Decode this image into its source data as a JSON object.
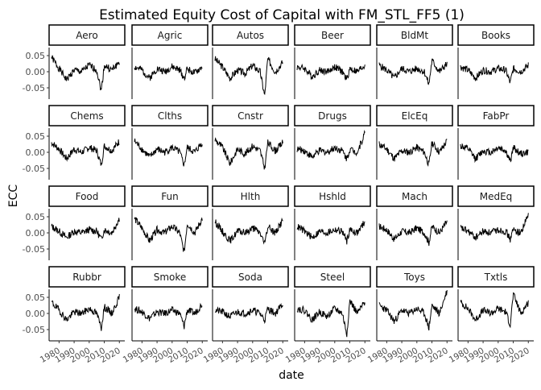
{
  "chart_data": {
    "type": "line",
    "title": "Estimated Equity Cost of Capital with FM_STL_FF5 (1)",
    "xlabel": "date",
    "ylabel": "ECC",
    "ylim": [
      -0.085,
      0.075
    ],
    "xlim": [
      1975,
      2022
    ],
    "yticks": [
      0.05,
      0.0,
      -0.05
    ],
    "ytick_labels": [
      "0.05",
      "0.00",
      "-0.05"
    ],
    "xticks": [
      1980,
      1990,
      2000,
      2010,
      2020
    ],
    "xtick_labels": [
      "1980",
      "1990",
      "2000",
      "2010",
      "2020"
    ],
    "facet_layout": {
      "rows": 4,
      "cols": 6
    },
    "panels": [
      {
        "label": "Aero",
        "series": [
          {
            "x": [
              1975,
              1980,
              1985,
              1990,
              1995,
              2000,
              2005,
              2008,
              2010,
              2015,
              2020
            ],
            "y": [
              0.045,
              0.01,
              -0.025,
              0.005,
              0.0,
              0.02,
              0.005,
              -0.06,
              0.02,
              0.005,
              0.03
            ]
          }
        ]
      },
      {
        "label": "Agric",
        "series": [
          {
            "x": [
              1975,
              1980,
              1985,
              1990,
              1995,
              2000,
              2005,
              2008,
              2010,
              2015,
              2020
            ],
            "y": [
              0.015,
              0.005,
              -0.02,
              0.01,
              0.0,
              0.015,
              0.005,
              -0.02,
              0.01,
              -0.005,
              0.015
            ]
          }
        ]
      },
      {
        "label": "Autos",
        "series": [
          {
            "x": [
              1975,
              1980,
              1985,
              1990,
              1995,
              2000,
              2005,
              2008,
              2010,
              2015,
              2020
            ],
            "y": [
              0.04,
              0.015,
              -0.02,
              0.005,
              -0.005,
              0.02,
              0.0,
              -0.075,
              0.04,
              0.0,
              0.03
            ]
          }
        ]
      },
      {
        "label": "Beer",
        "series": [
          {
            "x": [
              1975,
              1980,
              1985,
              1990,
              1995,
              2000,
              2005,
              2008,
              2010,
              2015,
              2020
            ],
            "y": [
              0.015,
              0.01,
              -0.015,
              0.005,
              0.0,
              0.015,
              0.0,
              -0.025,
              0.01,
              0.0,
              0.02
            ]
          }
        ]
      },
      {
        "label": "BldMt",
        "series": [
          {
            "x": [
              1975,
              1980,
              1985,
              1990,
              1995,
              2000,
              2005,
              2008,
              2010,
              2015,
              2020
            ],
            "y": [
              0.02,
              0.005,
              -0.02,
              0.01,
              0.0,
              0.01,
              0.0,
              -0.04,
              0.035,
              0.0,
              0.025
            ]
          }
        ]
      },
      {
        "label": "Books",
        "series": [
          {
            "x": [
              1975,
              1980,
              1985,
              1990,
              1995,
              2000,
              2005,
              2008,
              2010,
              2015,
              2020
            ],
            "y": [
              0.015,
              0.005,
              -0.02,
              0.005,
              0.0,
              0.01,
              0.005,
              -0.035,
              0.01,
              0.0,
              0.02
            ]
          }
        ]
      },
      {
        "label": "Chems",
        "series": [
          {
            "x": [
              1975,
              1980,
              1985,
              1990,
              1995,
              2000,
              2005,
              2008,
              2010,
              2015,
              2020
            ],
            "y": [
              0.03,
              0.01,
              -0.02,
              0.01,
              0.0,
              0.015,
              0.005,
              -0.04,
              0.02,
              0.005,
              0.035
            ]
          }
        ]
      },
      {
        "label": "Clths",
        "series": [
          {
            "x": [
              1975,
              1980,
              1985,
              1990,
              1995,
              2000,
              2005,
              2008,
              2010,
              2015,
              2020
            ],
            "y": [
              0.035,
              0.01,
              -0.015,
              0.01,
              0.0,
              0.015,
              0.0,
              -0.04,
              0.015,
              0.0,
              0.03
            ]
          }
        ]
      },
      {
        "label": "Cnstr",
        "series": [
          {
            "x": [
              1975,
              1980,
              1985,
              1990,
              1995,
              2000,
              2005,
              2008,
              2010,
              2015,
              2020
            ],
            "y": [
              0.04,
              0.015,
              -0.035,
              0.01,
              -0.005,
              0.02,
              0.005,
              -0.05,
              0.03,
              0.005,
              0.03
            ]
          }
        ]
      },
      {
        "label": "Drugs",
        "series": [
          {
            "x": [
              1975,
              1980,
              1985,
              1990,
              1995,
              2000,
              2005,
              2008,
              2010,
              2015,
              2020
            ],
            "y": [
              0.01,
              0.005,
              -0.015,
              0.005,
              0.0,
              0.015,
              0.005,
              -0.02,
              0.01,
              0.0,
              0.06
            ]
          }
        ]
      },
      {
        "label": "ElcEq",
        "series": [
          {
            "x": [
              1975,
              1980,
              1985,
              1990,
              1995,
              2000,
              2005,
              2008,
              2010,
              2015,
              2020
            ],
            "y": [
              0.025,
              0.01,
              -0.02,
              0.005,
              0.0,
              0.015,
              0.0,
              -0.04,
              0.03,
              0.0,
              0.035
            ]
          }
        ]
      },
      {
        "label": "FabPr",
        "series": [
          {
            "x": [
              1975,
              1980,
              1985,
              1990,
              1995,
              2000,
              2005,
              2008,
              2010,
              2015,
              2020
            ],
            "y": [
              0.02,
              0.01,
              -0.02,
              0.005,
              0.0,
              0.015,
              0.005,
              -0.03,
              0.015,
              -0.005,
              0.0
            ]
          }
        ]
      },
      {
        "label": "Food",
        "series": [
          {
            "x": [
              1975,
              1980,
              1985,
              1990,
              1995,
              2000,
              2005,
              2008,
              2010,
              2015,
              2020
            ],
            "y": [
              0.02,
              0.005,
              -0.015,
              0.005,
              0.0,
              0.01,
              0.005,
              -0.02,
              0.01,
              0.0,
              0.045
            ]
          }
        ]
      },
      {
        "label": "Fun",
        "series": [
          {
            "x": [
              1975,
              1980,
              1985,
              1990,
              1995,
              2000,
              2005,
              2008,
              2010,
              2015,
              2020
            ],
            "y": [
              0.045,
              0.015,
              -0.025,
              0.01,
              0.0,
              0.02,
              0.0,
              -0.06,
              0.03,
              0.0,
              0.045
            ]
          }
        ]
      },
      {
        "label": "Hlth",
        "series": [
          {
            "x": [
              1975,
              1980,
              1985,
              1990,
              1995,
              2000,
              2005,
              2008,
              2010,
              2015,
              2020
            ],
            "y": [
              0.035,
              0.005,
              -0.025,
              0.005,
              0.0,
              0.015,
              0.0,
              -0.035,
              0.02,
              0.0,
              0.04
            ]
          }
        ]
      },
      {
        "label": "Hshld",
        "series": [
          {
            "x": [
              1975,
              1980,
              1985,
              1990,
              1995,
              2000,
              2005,
              2008,
              2010,
              2015,
              2020
            ],
            "y": [
              0.02,
              0.005,
              -0.015,
              0.005,
              0.0,
              0.01,
              0.005,
              -0.025,
              0.01,
              0.0,
              0.035
            ]
          }
        ]
      },
      {
        "label": "Mach",
        "series": [
          {
            "x": [
              1975,
              1980,
              1985,
              1990,
              1995,
              2000,
              2005,
              2008,
              2010,
              2015,
              2020
            ],
            "y": [
              0.02,
              0.01,
              -0.02,
              0.005,
              0.0,
              0.015,
              0.0,
              -0.03,
              0.02,
              0.0,
              0.035
            ]
          }
        ]
      },
      {
        "label": "MedEq",
        "series": [
          {
            "x": [
              1975,
              1980,
              1985,
              1990,
              1995,
              2000,
              2005,
              2008,
              2010,
              2015,
              2020
            ],
            "y": [
              0.015,
              0.005,
              -0.015,
              0.005,
              0.0,
              0.01,
              0.005,
              -0.02,
              0.01,
              0.0,
              0.055
            ]
          }
        ]
      },
      {
        "label": "Rubbr",
        "series": [
          {
            "x": [
              1975,
              1980,
              1985,
              1990,
              1995,
              2000,
              2005,
              2008,
              2010,
              2015,
              2020
            ],
            "y": [
              0.035,
              0.01,
              -0.02,
              0.005,
              0.0,
              0.015,
              0.0,
              -0.045,
              0.02,
              0.0,
              0.05
            ]
          }
        ]
      },
      {
        "label": "Smoke",
        "series": [
          {
            "x": [
              1975,
              1980,
              1985,
              1990,
              1995,
              2000,
              2005,
              2008,
              2010,
              2015,
              2020
            ],
            "y": [
              0.015,
              0.005,
              -0.015,
              0.005,
              0.0,
              0.01,
              0.0,
              -0.04,
              0.01,
              0.0,
              0.03
            ]
          }
        ]
      },
      {
        "label": "Soda",
        "series": [
          {
            "x": [
              1975,
              1980,
              1985,
              1990,
              1995,
              2000,
              2005,
              2008,
              2010,
              2015,
              2020
            ],
            "y": [
              0.01,
              0.005,
              -0.01,
              0.005,
              0.0,
              0.01,
              0.0,
              -0.02,
              0.015,
              0.0,
              0.03
            ]
          }
        ]
      },
      {
        "label": "Steel",
        "series": [
          {
            "x": [
              1975,
              1980,
              1985,
              1990,
              1995,
              2000,
              2005,
              2008,
              2010,
              2015,
              2020
            ],
            "y": [
              0.015,
              0.01,
              -0.02,
              0.005,
              -0.01,
              0.015,
              0.0,
              -0.065,
              0.04,
              0.0,
              0.035
            ]
          }
        ]
      },
      {
        "label": "Toys",
        "series": [
          {
            "x": [
              1975,
              1980,
              1985,
              1990,
              1995,
              2000,
              2005,
              2008,
              2010,
              2015,
              2020
            ],
            "y": [
              0.025,
              0.01,
              -0.025,
              0.01,
              0.0,
              0.015,
              0.0,
              -0.045,
              0.025,
              0.0,
              0.07
            ]
          }
        ]
      },
      {
        "label": "Txtls",
        "series": [
          {
            "x": [
              1975,
              1980,
              1985,
              1990,
              1995,
              2000,
              2005,
              2008,
              2010,
              2015,
              2020
            ],
            "y": [
              0.035,
              0.015,
              -0.02,
              0.01,
              0.0,
              0.015,
              0.005,
              -0.035,
              0.06,
              0.0,
              0.035
            ]
          }
        ]
      }
    ]
  }
}
